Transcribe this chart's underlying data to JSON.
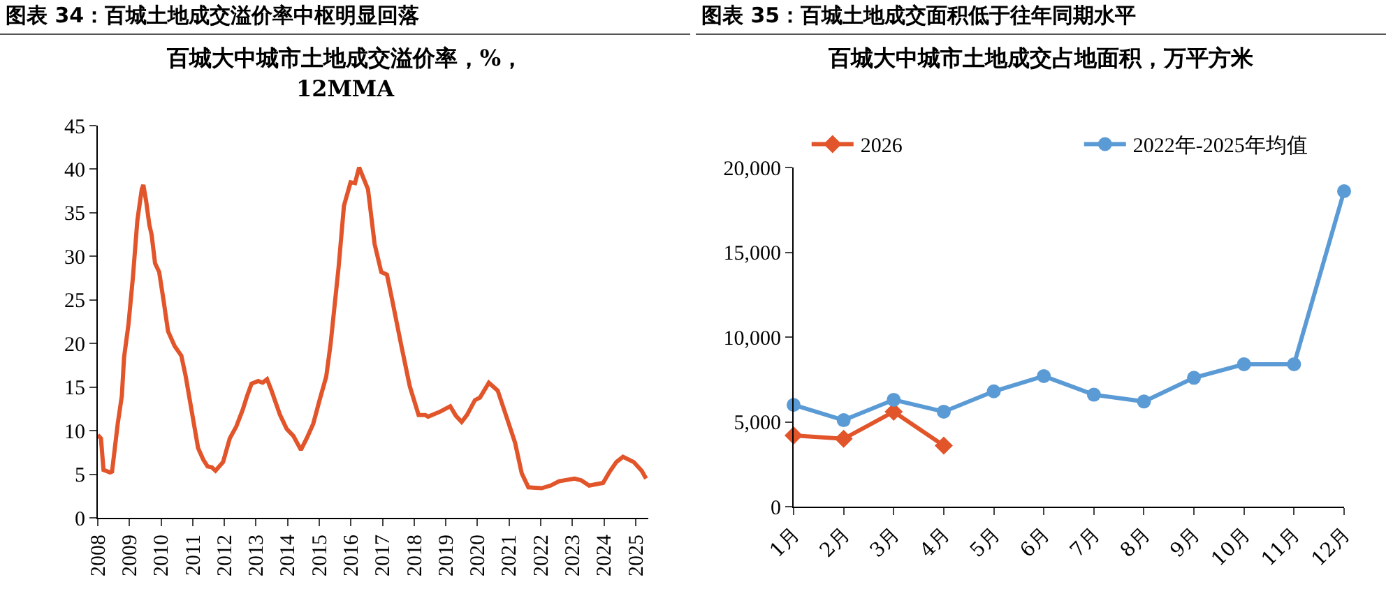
{
  "chart_data": [
    {
      "type": "line",
      "title": "图表 34：百城土地成交溢价率中枢明显回落",
      "subtitle": "百城大中城市土地成交溢价率，%，12MMA",
      "grid": false,
      "legend": false,
      "marker": "none",
      "line_style": "solid",
      "series": [
        {
          "color": "#e2542a",
          "x": [
            2008.0,
            2008.1,
            2008.18,
            2008.39,
            2008.45,
            2008.63,
            2008.76,
            2008.83,
            2008.97,
            2009.11,
            2009.25,
            2009.39,
            2009.44,
            2009.53,
            2009.63,
            2009.7,
            2009.81,
            2009.94,
            2010.08,
            2010.22,
            2010.43,
            2010.64,
            2010.78,
            2010.99,
            2011.17,
            2011.33,
            2011.47,
            2011.6,
            2011.72,
            2011.96,
            2012.17,
            2012.38,
            2012.58,
            2012.72,
            2012.86,
            2013.07,
            2013.21,
            2013.35,
            2013.49,
            2013.76,
            2013.97,
            2014.18,
            2014.42,
            2014.6,
            2014.81,
            2015.01,
            2015.22,
            2015.36,
            2015.5,
            2015.61,
            2015.78,
            2015.99,
            2016.13,
            2016.26,
            2016.54,
            2016.75,
            2016.96,
            2017.14,
            2017.31,
            2017.58,
            2017.86,
            2018.14,
            2018.35,
            2018.44,
            2018.83,
            2019.14,
            2019.32,
            2019.5,
            2019.67,
            2019.92,
            2020.08,
            2020.36,
            2020.64,
            2020.99,
            2021.19,
            2021.4,
            2021.61,
            2022.03,
            2022.31,
            2022.58,
            2023.07,
            2023.28,
            2023.53,
            2023.97,
            2024.18,
            2024.39,
            2024.6,
            2024.94,
            2025.19,
            2025.33
          ],
          "values": [
            9.5,
            9.1,
            5.5,
            5.2,
            5.3,
            10.8,
            14,
            18.4,
            22.2,
            27.6,
            34.1,
            37.7,
            38.2,
            36.3,
            33.6,
            32.5,
            29.2,
            28.2,
            24.9,
            21.4,
            19.7,
            18.6,
            16.2,
            11.8,
            8.0,
            6.7,
            5.9,
            5.8,
            5.4,
            6.4,
            9.1,
            10.5,
            12.4,
            14.0,
            15.4,
            15.7,
            15.5,
            15.9,
            14.6,
            11.8,
            10.2,
            9.4,
            7.8,
            9.1,
            10.8,
            13.5,
            16.2,
            20,
            24.9,
            28.7,
            35.8,
            38.5,
            38.4,
            40.2,
            37.7,
            31.4,
            28.2,
            27.9,
            24.9,
            20.0,
            15.1,
            11.8,
            11.8,
            11.6,
            12.2,
            12.8,
            11.7,
            11.0,
            11.8,
            13.5,
            13.8,
            15.5,
            14.6,
            10.8,
            8.6,
            5.1,
            3.5,
            3.4,
            3.7,
            4.2,
            4.5,
            4.3,
            3.7,
            4.0,
            5.3,
            6.4,
            7.0,
            6.4,
            5.4,
            4.5
          ]
        }
      ],
      "xlim": [
        2008,
        2025.4
      ],
      "xticks": [
        2008,
        2009,
        2010,
        2011,
        2012,
        2013,
        2014,
        2015,
        2016,
        2017,
        2018,
        2019,
        2020,
        2021,
        2022,
        2023,
        2024,
        2025
      ],
      "ylim": [
        0,
        45
      ],
      "yticks": [
        0,
        5,
        10,
        15,
        20,
        25,
        30,
        35,
        40,
        45
      ]
    },
    {
      "type": "line",
      "title": "图表 35：百城土地成交面积低于往年同期水平",
      "subtitle": "百城大中城市土地成交占地面积，万平方米",
      "grid": false,
      "legend": "top",
      "line_style": "solid",
      "categories": [
        "1月",
        "2月",
        "3月",
        "4月",
        "5月",
        "6月",
        "7月",
        "8月",
        "9月",
        "10月",
        "11月",
        "12月"
      ],
      "series": [
        {
          "name": "2026",
          "color": "#e2542a",
          "marker": "diamond",
          "values": [
            4200,
            4000,
            5600,
            3600,
            null,
            null,
            null,
            null,
            null,
            null,
            null,
            null
          ]
        },
        {
          "name": "2022年-2025年均值",
          "color": "#5b9bd5",
          "marker": "circle",
          "values": [
            6000,
            5100,
            6300,
            5600,
            6800,
            7700,
            6600,
            6200,
            7600,
            8400,
            8400,
            18600
          ]
        }
      ],
      "ylim": [
        0,
        20000
      ],
      "yticks": [
        0,
        {
          "value": 5000,
          "label": "5,000"
        },
        {
          "value": 10000,
          "label": "10,000"
        },
        {
          "value": 15000,
          "label": "15,000"
        },
        {
          "value": 20000,
          "label": "20,000"
        }
      ]
    }
  ]
}
